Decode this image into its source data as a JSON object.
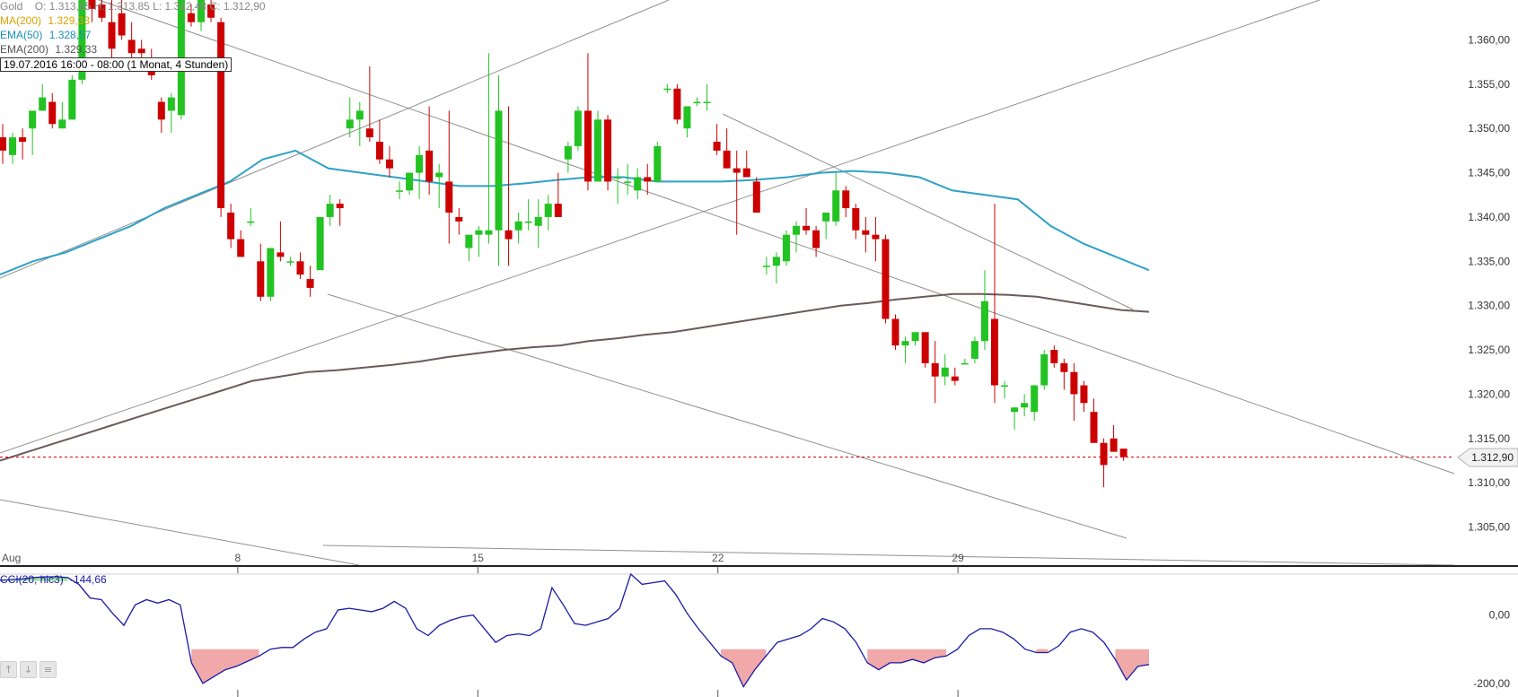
{
  "header": {
    "instrument": "Gold",
    "ohlc": "O: 1.313,85  H: 1.313,85  L: 1.312,48  C: 1.312,90",
    "ma200_label": "MA(200)",
    "ma200_value": "1.329,33",
    "ema50_label": "EMA(50)",
    "ema50_value": "1.328,57",
    "ema200_label": "EMA(200)",
    "ema200_value": "1.329,33",
    "timestamp": "19.07.2016 16:00 - 08:00 (1 Monat, 4 Stunden)"
  },
  "current_price_label": "1.312,90",
  "cci": {
    "label": "CCI(20, hlc3)",
    "value": "-144,66"
  },
  "colors": {
    "up": "#22c322",
    "down": "#cc0000",
    "ema50": "#2ea1c6",
    "ema200": "#6b5a5a",
    "trendline": "#909090",
    "cci_line": "#1a1aa6",
    "cci_over": "#9be59b",
    "cci_under": "#f0a8a8",
    "price_line": "#e00000"
  },
  "chart_data": [
    {
      "type": "candlestick",
      "title": "Gold",
      "x_ticks": [
        "Aug",
        "8",
        "15",
        "22",
        "29"
      ],
      "y_ticks": [
        "1.360,00",
        "1.355,00",
        "1.350,00",
        "1.345,00",
        "1.340,00",
        "1.335,00",
        "1.330,00",
        "1.325,00",
        "1.320,00",
        "1.315,00",
        "1.310,00",
        "1.305,00"
      ],
      "ylim": [
        1300.7,
        1364.5
      ],
      "current_price": 1312.9,
      "candles": [
        [
          1349.0,
          1350.5,
          1346.0,
          1347.5
        ],
        [
          1347.0,
          1349.5,
          1346.0,
          1349.0
        ],
        [
          1349.0,
          1350.0,
          1346.5,
          1348.5
        ],
        [
          1350.0,
          1352.0,
          1347.0,
          1352.0
        ],
        [
          1352.0,
          1355.0,
          1352.0,
          1353.5
        ],
        [
          1353.0,
          1354.0,
          1350.0,
          1350.5
        ],
        [
          1350.0,
          1353.0,
          1350.0,
          1351.0
        ],
        [
          1351.0,
          1356.0,
          1351.0,
          1355.5
        ],
        [
          1355.5,
          1366.0,
          1355.0,
          1364.5
        ],
        [
          1364.5,
          1368.0,
          1362.0,
          1363.5
        ],
        [
          1364.0,
          1365.0,
          1362.0,
          1362.5
        ],
        [
          1362.0,
          1366.0,
          1358.0,
          1359.0
        ],
        [
          1363.0,
          1365.0,
          1360.0,
          1360.5
        ],
        [
          1360.0,
          1362.0,
          1356.5,
          1358.5
        ],
        [
          1359.0,
          1360.0,
          1357.0,
          1358.5
        ],
        [
          1358.0,
          1359.0,
          1355.5,
          1356.0
        ],
        [
          1353.0,
          1353.5,
          1349.5,
          1351.0
        ],
        [
          1352.0,
          1354.0,
          1349.5,
          1353.5
        ],
        [
          1351.5,
          1366.0,
          1351.0,
          1366.0
        ],
        [
          1363.0,
          1364.0,
          1361.5,
          1362.0
        ],
        [
          1362.0,
          1364.5,
          1361.0,
          1364.5
        ],
        [
          1364.0,
          1364.5,
          1362.0,
          1362.5
        ],
        [
          1362.0,
          1362.5,
          1340.0,
          1341.0
        ],
        [
          1340.5,
          1341.5,
          1336.5,
          1337.5
        ],
        [
          1337.5,
          1338.5,
          1335.5,
          1335.5
        ],
        [
          1339.5,
          1341.0,
          1339.0,
          1339.5
        ],
        [
          1335.0,
          1337.0,
          1330.5,
          1331.0
        ],
        [
          1331.0,
          1336.0,
          1330.5,
          1336.5
        ],
        [
          1336.0,
          1339.5,
          1335.0,
          1335.5
        ],
        [
          1335.0,
          1335.5,
          1334.5,
          1335.0
        ],
        [
          1335.0,
          1336.0,
          1333.0,
          1333.5
        ],
        [
          1333.0,
          1334.5,
          1331.0,
          1332.0
        ],
        [
          1334.0,
          1340.0,
          1334.0,
          1340.0
        ],
        [
          1340.0,
          1342.5,
          1339.0,
          1341.5
        ],
        [
          1341.5,
          1342.0,
          1339.0,
          1341.0
        ],
        [
          1350.0,
          1353.5,
          1349.0,
          1351.0
        ],
        [
          1351.0,
          1353.0,
          1348.0,
          1352.0
        ],
        [
          1350.0,
          1357.0,
          1348.5,
          1349.0
        ],
        [
          1348.5,
          1351.0,
          1346.0,
          1346.5
        ],
        [
          1346.5,
          1348.0,
          1344.5,
          1345.5
        ],
        [
          1343.0,
          1344.0,
          1342.0,
          1343.0
        ],
        [
          1343.0,
          1345.0,
          1342.5,
          1345.0
        ],
        [
          1345.0,
          1348.0,
          1342.0,
          1347.0
        ],
        [
          1347.5,
          1352.5,
          1342.5,
          1344.0
        ],
        [
          1344.5,
          1346.0,
          1341.0,
          1345.0
        ],
        [
          1344.0,
          1352.0,
          1337.0,
          1340.5
        ],
        [
          1340.0,
          1341.0,
          1338.0,
          1339.5
        ],
        [
          1336.5,
          1338.0,
          1335.0,
          1338.0
        ],
        [
          1338.0,
          1339.0,
          1335.5,
          1338.5
        ],
        [
          1338.0,
          1358.5,
          1337.0,
          1338.5
        ],
        [
          1338.5,
          1356.0,
          1334.5,
          1352.0
        ],
        [
          1338.5,
          1352.5,
          1334.5,
          1337.5
        ],
        [
          1338.5,
          1340.5,
          1337.0,
          1339.5
        ],
        [
          1339.5,
          1342.0,
          1338.5,
          1339.5
        ],
        [
          1339.0,
          1342.0,
          1336.5,
          1340.0
        ],
        [
          1340.0,
          1342.5,
          1338.5,
          1341.5
        ],
        [
          1341.5,
          1345.0,
          1340.0,
          1340.0
        ],
        [
          1346.5,
          1348.5,
          1345.0,
          1348.0
        ],
        [
          1348.0,
          1352.5,
          1347.5,
          1352.0
        ],
        [
          1352.0,
          1358.5,
          1343.0,
          1344.0
        ],
        [
          1344.0,
          1352.0,
          1344.0,
          1351.0
        ],
        [
          1351.0,
          1351.5,
          1343.0,
          1344.0
        ],
        [
          1344.5,
          1345.5,
          1341.5,
          1344.5
        ],
        [
          1344.0,
          1346.0,
          1342.5,
          1344.0
        ],
        [
          1343.0,
          1345.5,
          1342.0,
          1344.5
        ],
        [
          1344.5,
          1346.0,
          1342.5,
          1344.0
        ],
        [
          1344.0,
          1348.5,
          1344.0,
          1348.0
        ],
        [
          1354.5,
          1355.0,
          1354.0,
          1354.5
        ],
        [
          1354.5,
          1355.0,
          1350.5,
          1351.0
        ],
        [
          1350.0,
          1352.0,
          1349.0,
          1352.5
        ],
        [
          1353.0,
          1353.5,
          1352.5,
          1353.0
        ],
        [
          1353.0,
          1355.0,
          1352.0,
          1353.0
        ],
        [
          1348.5,
          1350.5,
          1347.0,
          1347.5
        ],
        [
          1347.5,
          1350.0,
          1345.5,
          1345.5
        ],
        [
          1345.5,
          1347.5,
          1338.0,
          1345.0
        ],
        [
          1345.5,
          1347.5,
          1345.0,
          1344.5
        ],
        [
          1344.0,
          1344.5,
          1340.5,
          1340.5
        ],
        [
          1334.5,
          1335.5,
          1333.5,
          1334.5
        ],
        [
          1334.5,
          1336.0,
          1332.5,
          1335.5
        ],
        [
          1335.0,
          1338.5,
          1334.5,
          1338.0
        ],
        [
          1338.0,
          1339.5,
          1336.0,
          1339.0
        ],
        [
          1339.0,
          1341.0,
          1338.0,
          1338.5
        ],
        [
          1338.5,
          1339.0,
          1335.5,
          1336.5
        ],
        [
          1339.5,
          1340.5,
          1337.5,
          1340.5
        ],
        [
          1339.5,
          1345.0,
          1339.0,
          1343.0
        ],
        [
          1343.0,
          1343.5,
          1340.0,
          1341.0
        ],
        [
          1341.0,
          1341.5,
          1337.5,
          1338.5
        ],
        [
          1338.5,
          1340.0,
          1336.0,
          1338.0
        ],
        [
          1338.0,
          1340.0,
          1335.0,
          1337.5
        ],
        [
          1337.5,
          1338.0,
          1328.0,
          1328.5
        ],
        [
          1328.5,
          1329.0,
          1325.0,
          1325.5
        ],
        [
          1325.5,
          1326.5,
          1323.5,
          1326.0
        ],
        [
          1326.0,
          1327.0,
          1325.5,
          1327.0
        ],
        [
          1327.0,
          1327.0,
          1323.0,
          1323.5
        ],
        [
          1323.5,
          1326.0,
          1319.0,
          1322.0
        ],
        [
          1322.0,
          1324.5,
          1321.0,
          1323.0
        ],
        [
          1322.0,
          1323.0,
          1321.0,
          1321.5
        ],
        [
          1323.5,
          1324.0,
          1323.5,
          1323.5
        ],
        [
          1324.0,
          1326.5,
          1323.5,
          1326.0
        ],
        [
          1326.0,
          1334.0,
          1325.0,
          1330.5
        ],
        [
          1328.5,
          1341.5,
          1319.0,
          1321.0
        ],
        [
          1321.0,
          1321.5,
          1319.5,
          1321.0
        ],
        [
          1318.0,
          1318.5,
          1316.0,
          1318.5
        ],
        [
          1318.5,
          1320.0,
          1317.5,
          1319.0
        ],
        [
          1318.0,
          1321.0,
          1317.0,
          1321.0
        ],
        [
          1321.0,
          1325.0,
          1320.5,
          1324.5
        ],
        [
          1325.0,
          1325.5,
          1323.0,
          1323.5
        ],
        [
          1323.5,
          1324.0,
          1320.5,
          1322.5
        ],
        [
          1322.5,
          1323.5,
          1317.0,
          1320.0
        ],
        [
          1321.0,
          1321.5,
          1318.0,
          1319.0
        ],
        [
          1318.0,
          1319.5,
          1314.5,
          1314.5
        ],
        [
          1314.5,
          1315.0,
          1309.5,
          1312.0
        ],
        [
          1315.0,
          1316.5,
          1313.5,
          1313.5
        ],
        [
          1313.85,
          1313.85,
          1312.48,
          1312.9
        ]
      ],
      "ema50": [
        1333.5,
        1335.0,
        1336.0,
        1337.5,
        1339.0,
        1341.0,
        1342.5,
        1344.0,
        1346.5,
        1347.5,
        1345.5,
        1345.0,
        1344.5,
        1344.0,
        1343.5,
        1343.5,
        1343.8,
        1344.2,
        1344.5,
        1344.5,
        1344.0,
        1344.0,
        1344.0,
        1344.2,
        1344.5,
        1345.0,
        1345.2,
        1345.0,
        1344.5,
        1343.0,
        1342.5,
        1342.0,
        1339.0,
        1337.0,
        1335.5,
        1334.0
      ],
      "ema200": [
        1312.5,
        1313.5,
        1314.5,
        1315.5,
        1316.5,
        1317.5,
        1318.5,
        1319.5,
        1320.5,
        1321.5,
        1322.0,
        1322.5,
        1322.7,
        1323.0,
        1323.3,
        1323.7,
        1324.2,
        1324.6,
        1325.0,
        1325.3,
        1325.5,
        1326.0,
        1326.3,
        1326.7,
        1327.0,
        1327.5,
        1328.0,
        1328.5,
        1329.0,
        1329.5,
        1330.0,
        1330.3,
        1330.7,
        1331.0,
        1331.3,
        1331.3,
        1331.2,
        1331.0,
        1330.5,
        1330.0,
        1329.5,
        1329.3
      ]
    },
    {
      "type": "line",
      "title": "CCI(20, hlc3)",
      "y_ticks": [
        "0,00",
        "-200,00"
      ],
      "ylim": [
        -240,
        120
      ],
      "values": [
        102,
        104,
        106,
        110,
        112,
        112,
        110,
        90,
        50,
        45,
        5,
        -30,
        30,
        45,
        35,
        45,
        30,
        -140,
        -200,
        -180,
        -160,
        -150,
        -135,
        -120,
        -100,
        -95,
        -95,
        -70,
        -50,
        -40,
        15,
        20,
        15,
        10,
        20,
        40,
        20,
        -40,
        -60,
        -30,
        -15,
        -5,
        0,
        -40,
        -80,
        -60,
        -55,
        -60,
        -40,
        80,
        30,
        -25,
        -30,
        -20,
        -10,
        20,
        120,
        90,
        95,
        100,
        60,
        5,
        -40,
        -80,
        -120,
        -140,
        -210,
        -160,
        -120,
        -80,
        -70,
        -60,
        -40,
        -10,
        -20,
        -40,
        -80,
        -140,
        -160,
        -140,
        -140,
        -130,
        -140,
        -125,
        -120,
        -100,
        -60,
        -40,
        -40,
        -50,
        -70,
        -100,
        -110,
        -110,
        -90,
        -50,
        -40,
        -50,
        -80,
        -130,
        -190,
        -150,
        -145
      ]
    }
  ]
}
